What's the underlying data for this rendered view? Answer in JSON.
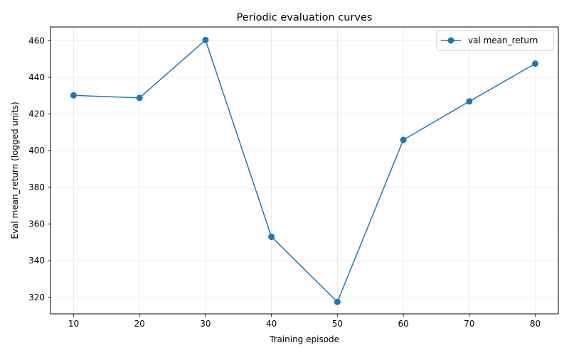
{
  "chart_data": {
    "type": "line",
    "title": "Periodic evaluation curves",
    "xlabel": "Training episode",
    "ylabel": "Eval mean_return (logged units)",
    "x": [
      10,
      20,
      30,
      40,
      50,
      60,
      70,
      80
    ],
    "x_ticks": [
      10,
      20,
      30,
      40,
      50,
      60,
      70,
      80
    ],
    "y_ticks": [
      320,
      340,
      360,
      380,
      400,
      420,
      440,
      460
    ],
    "xlim": [
      6.5,
      83.5
    ],
    "ylim": [
      311,
      467.5
    ],
    "grid": true,
    "legend_position": "top-right",
    "series": [
      {
        "name": "val mean_return",
        "color": "#1f77b4",
        "marker": "circle",
        "values": [
          430.2,
          428.8,
          460.4,
          353.0,
          317.5,
          405.9,
          426.9,
          447.5
        ]
      }
    ]
  }
}
